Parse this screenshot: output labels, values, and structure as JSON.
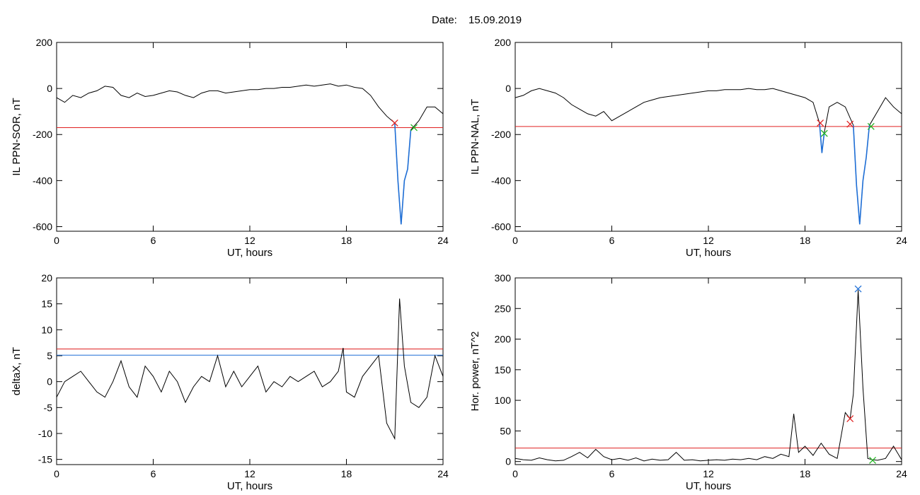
{
  "figure": {
    "title_label": "Date:",
    "title_date": "15.09.2019"
  },
  "colors": {
    "threshold_red": "#e02020",
    "threshold_blue": "#1f6fd6",
    "event_blue": "#1f6fd6",
    "marker_green": "#22b522",
    "line": "#000000"
  },
  "chart_data": [
    {
      "type": "line",
      "xlabel": "UT, hours",
      "ylabel": "IL PPN-SOR, nT",
      "xlim": [
        0,
        24
      ],
      "ylim": [
        -620,
        200
      ],
      "xticks": [
        0,
        6,
        12,
        18,
        24
      ],
      "yticks": [
        200,
        0,
        -200,
        -400,
        -600
      ],
      "x": [
        0,
        0.5,
        1,
        1.5,
        2,
        2.5,
        3,
        3.5,
        4,
        4.5,
        5,
        5.5,
        6,
        6.5,
        7,
        7.5,
        8,
        8.5,
        9,
        9.5,
        10,
        10.5,
        11,
        11.5,
        12,
        12.5,
        13,
        13.5,
        14,
        14.5,
        15,
        15.5,
        16,
        16.5,
        17,
        17.5,
        18,
        18.5,
        19,
        19.5,
        20,
        20.5,
        21,
        21.2,
        21.4,
        21.6,
        21.8,
        22,
        22.5,
        23,
        23.5,
        24
      ],
      "series": [
        {
          "values": [
            -40,
            -60,
            -30,
            -40,
            -20,
            -10,
            10,
            5,
            -30,
            -40,
            -20,
            -35,
            -30,
            -20,
            -10,
            -15,
            -30,
            -40,
            -20,
            -10,
            -10,
            -20,
            -15,
            -10,
            -5,
            -5,
            0,
            0,
            5,
            5,
            10,
            15,
            10,
            15,
            20,
            10,
            15,
            5,
            0,
            -30,
            -80,
            -120,
            -150,
            -400,
            -590,
            -400,
            -350,
            -180,
            -140,
            -80,
            -80,
            -110
          ]
        }
      ],
      "thresholds": [
        {
          "value": -170,
          "color": "#e02020"
        }
      ],
      "event_segments": [
        {
          "x_start": 21,
          "x_end": 22.2
        }
      ],
      "markers": [
        {
          "x": 21.0,
          "y": -150,
          "color": "#e02020"
        },
        {
          "x": 22.2,
          "y": -170,
          "color": "#22b522"
        }
      ]
    },
    {
      "type": "line",
      "xlabel": "UT, hours",
      "ylabel": "IL PPN-NAL, nT",
      "xlim": [
        0,
        24
      ],
      "ylim": [
        -620,
        200
      ],
      "xticks": [
        0,
        6,
        12,
        18,
        24
      ],
      "yticks": [
        200,
        0,
        -200,
        -400,
        -600
      ],
      "x": [
        0,
        0.5,
        1,
        1.5,
        2,
        2.5,
        3,
        3.5,
        4,
        4.5,
        5,
        5.5,
        6,
        6.5,
        7,
        7.5,
        8,
        8.5,
        9,
        9.5,
        10,
        10.5,
        11,
        11.5,
        12,
        12.5,
        13,
        13.5,
        14,
        14.5,
        15,
        15.5,
        16,
        16.5,
        17,
        17.5,
        18,
        18.5,
        18.9,
        19.05,
        19.2,
        19.5,
        20,
        20.5,
        21,
        21.2,
        21.4,
        21.6,
        21.8,
        22,
        22.5,
        23,
        23.5,
        24
      ],
      "series": [
        {
          "values": [
            -40,
            -30,
            -10,
            0,
            -10,
            -20,
            -40,
            -70,
            -90,
            -110,
            -120,
            -100,
            -140,
            -120,
            -100,
            -80,
            -60,
            -50,
            -40,
            -35,
            -30,
            -25,
            -20,
            -15,
            -10,
            -10,
            -5,
            -5,
            -5,
            0,
            -5,
            -5,
            0,
            -10,
            -20,
            -30,
            -40,
            -60,
            -150,
            -280,
            -190,
            -80,
            -60,
            -80,
            -160,
            -420,
            -590,
            -400,
            -300,
            -160,
            -100,
            -40,
            -80,
            -110
          ]
        }
      ],
      "thresholds": [
        {
          "value": -165,
          "color": "#e02020"
        }
      ],
      "event_segments": [
        {
          "x_start": 18.9,
          "x_end": 19.2
        },
        {
          "x_start": 21,
          "x_end": 22.1
        }
      ],
      "markers": [
        {
          "x": 18.95,
          "y": -150,
          "color": "#e02020"
        },
        {
          "x": 19.2,
          "y": -195,
          "color": "#22b522"
        },
        {
          "x": 20.8,
          "y": -155,
          "color": "#e02020"
        },
        {
          "x": 22.1,
          "y": -165,
          "color": "#22b522"
        }
      ]
    },
    {
      "type": "line",
      "xlabel": "UT, hours",
      "ylabel": "deltaX, nT",
      "xlim": [
        0,
        24
      ],
      "ylim": [
        -16,
        20
      ],
      "xticks": [
        0,
        6,
        12,
        18,
        24
      ],
      "yticks": [
        20,
        15,
        10,
        5,
        0,
        -5,
        -10,
        -15
      ],
      "x": [
        0,
        0.5,
        1,
        1.5,
        2,
        2.5,
        3,
        3.5,
        4,
        4.5,
        5,
        5.5,
        6,
        6.5,
        7,
        7.5,
        8,
        8.5,
        9,
        9.5,
        10,
        10.5,
        11,
        11.5,
        12,
        12.5,
        13,
        13.5,
        14,
        14.5,
        15,
        15.5,
        16,
        16.5,
        17,
        17.5,
        17.8,
        18,
        18.5,
        19,
        19.5,
        20,
        20.5,
        21,
        21.3,
        21.6,
        22,
        22.5,
        23,
        23.5,
        24
      ],
      "series": [
        {
          "values": [
            -3,
            0,
            1,
            2,
            0,
            -2,
            -3,
            0,
            4,
            -1,
            -3,
            3,
            1,
            -2,
            2,
            0,
            -4,
            -1,
            1,
            0,
            5,
            -1,
            2,
            -1,
            1,
            3,
            -2,
            0,
            -1,
            1,
            0,
            1,
            2,
            -1,
            0,
            2,
            6.5,
            -2,
            -3,
            1,
            3,
            5,
            -8,
            -11,
            16,
            3,
            -4,
            -5,
            -3,
            5,
            1
          ]
        }
      ],
      "thresholds": [
        {
          "value": 6.3,
          "color": "#e02020"
        },
        {
          "value": 5.1,
          "color": "#1f6fd6"
        }
      ],
      "event_segments": [],
      "markers": []
    },
    {
      "type": "line",
      "xlabel": "UT, hours",
      "ylabel": "Hor. power, nT^2",
      "xlim": [
        0,
        24
      ],
      "ylim": [
        -5,
        300
      ],
      "xticks": [
        0,
        6,
        12,
        18,
        24
      ],
      "yticks": [
        300,
        250,
        200,
        150,
        100,
        50,
        0
      ],
      "x": [
        0,
        0.5,
        1,
        1.5,
        2,
        2.5,
        3,
        3.5,
        4,
        4.5,
        5,
        5.5,
        6,
        6.5,
        7,
        7.5,
        8,
        8.5,
        9,
        9.5,
        10,
        10.5,
        11,
        11.5,
        12,
        12.5,
        13,
        13.5,
        14,
        14.5,
        15,
        15.5,
        16,
        16.5,
        17,
        17.3,
        17.6,
        18,
        18.5,
        19,
        19.5,
        20,
        20.5,
        20.8,
        21,
        21.3,
        21.6,
        21.9,
        22.2,
        22.5,
        23,
        23.5,
        24
      ],
      "series": [
        {
          "values": [
            5,
            3,
            2,
            6,
            3,
            1,
            2,
            8,
            15,
            6,
            20,
            8,
            3,
            5,
            2,
            6,
            1,
            4,
            2,
            3,
            15,
            2,
            3,
            1,
            2,
            3,
            2,
            4,
            3,
            5,
            3,
            8,
            5,
            12,
            8,
            78,
            15,
            25,
            10,
            30,
            12,
            5,
            80,
            70,
            110,
            280,
            120,
            5,
            3,
            2,
            5,
            25,
            3
          ]
        }
      ],
      "thresholds": [
        {
          "value": 22,
          "color": "#e02020"
        }
      ],
      "event_segments": [],
      "markers": [
        {
          "x": 21.3,
          "y": 282,
          "color": "#1f6fd6"
        },
        {
          "x": 20.8,
          "y": 70,
          "color": "#e02020"
        },
        {
          "x": 22.2,
          "y": 2,
          "color": "#22b522"
        }
      ]
    }
  ]
}
